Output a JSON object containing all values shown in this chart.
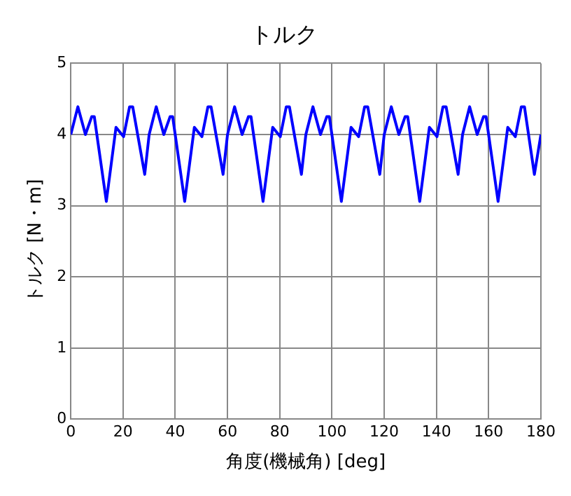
{
  "chart_data": {
    "type": "line",
    "title": "トルク",
    "xlabel": "角度(機械角) [deg]",
    "ylabel": "トルク [N・m]",
    "x": [
      0,
      2.7,
      5.6,
      8,
      9,
      13.6,
      17.3,
      20.2,
      22.5,
      23.7,
      28.3,
      30,
      32.7,
      35.6,
      38,
      39,
      43.6,
      47.3,
      50.2,
      52.5,
      53.7,
      58.3,
      60,
      62.7,
      65.6,
      68,
      69,
      73.6,
      77.3,
      80.2,
      82.5,
      83.7,
      88.3,
      90,
      92.7,
      95.6,
      98,
      99,
      103.6,
      107.3,
      110.2,
      112.5,
      113.7,
      118.3,
      120,
      122.7,
      125.6,
      128,
      129,
      133.6,
      137.3,
      140.2,
      142.5,
      143.7,
      148.3,
      150,
      152.7,
      155.6,
      158,
      159,
      163.6,
      167.3,
      170.2,
      172.5,
      173.7,
      177.5,
      180
    ],
    "series": [
      {
        "color": "#0000ff",
        "values": [
          4.0,
          4.39,
          4.0,
          4.25,
          4.25,
          3.06,
          4.1,
          3.97,
          4.39,
          4.39,
          3.44,
          4.0,
          4.39,
          4.0,
          4.25,
          4.25,
          3.06,
          4.1,
          3.97,
          4.39,
          4.39,
          3.44,
          4.0,
          4.39,
          4.0,
          4.25,
          4.25,
          3.06,
          4.1,
          3.97,
          4.39,
          4.39,
          3.44,
          4.0,
          4.39,
          4.0,
          4.25,
          4.25,
          3.06,
          4.1,
          3.97,
          4.39,
          4.39,
          3.44,
          4.0,
          4.39,
          4.0,
          4.25,
          4.25,
          3.06,
          4.1,
          3.97,
          4.39,
          4.39,
          3.44,
          4.0,
          4.39,
          4.0,
          4.25,
          4.25,
          3.06,
          4.1,
          3.97,
          4.39,
          4.39,
          3.44,
          4.0
        ]
      }
    ],
    "xlim": [
      0,
      180
    ],
    "xticks": [
      0,
      20,
      40,
      60,
      80,
      100,
      120,
      140,
      160,
      180
    ],
    "ylim": [
      0,
      5
    ],
    "yticks": [
      0,
      1,
      2,
      3,
      4,
      5
    ],
    "grid": true,
    "legend": false,
    "marker": "none",
    "line_style": "solid"
  }
}
